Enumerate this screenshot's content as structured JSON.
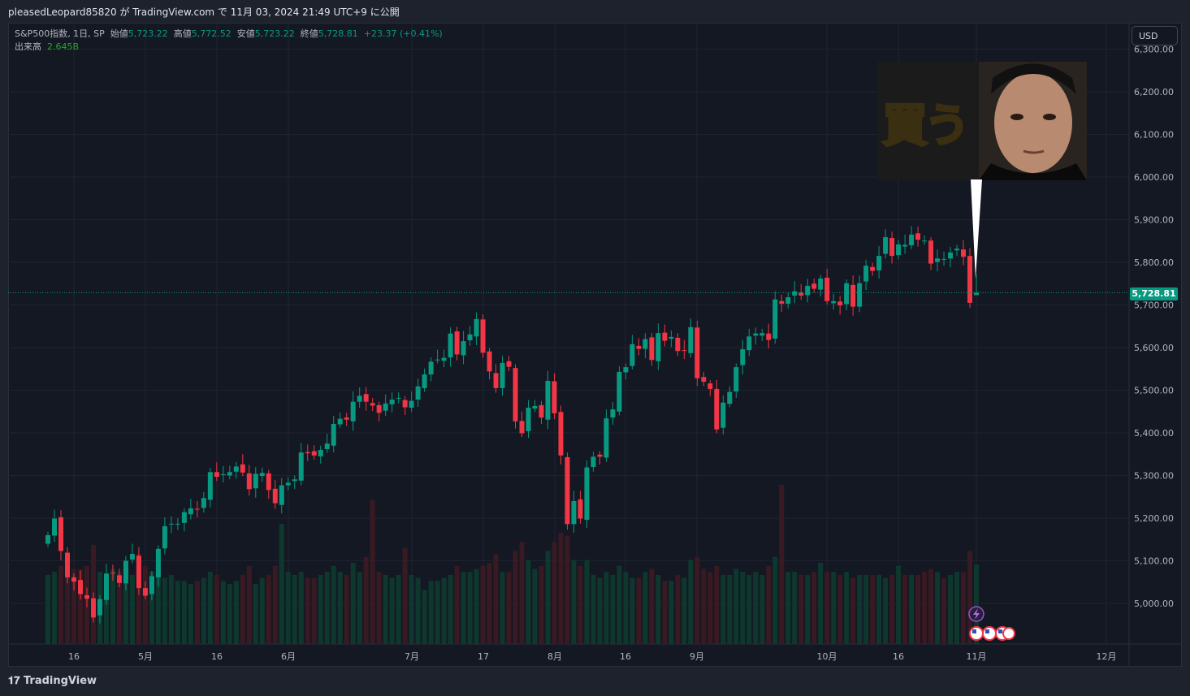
{
  "header": {
    "published": "pleasedLeopard85820 が TradingView.com で 11月 03, 2024 21:49 UTC+9 に公開"
  },
  "legend": {
    "symbol": "S&P500指数, 1日, SP",
    "open_label": "始値",
    "open": "5,723.22",
    "high_label": "高値",
    "high": "5,772.52",
    "low_label": "安値",
    "low": "5,723.22",
    "close_label": "終値",
    "close": "5,728.81",
    "change": "+23.37 (+0.41%)",
    "volume_label": "出来高",
    "volume": "2.645B"
  },
  "currency_button": "USD",
  "last_price_label": "5,728.81",
  "thumbnail": {
    "text": "買う"
  },
  "footer": {
    "brand": "TradingView"
  },
  "colors": {
    "up": "#089981",
    "down": "#f23645",
    "background": "#141823"
  },
  "chart_data": {
    "type": "candlestick",
    "yaxis_ticks": [
      "5,000.00",
      "5,100.00",
      "5,200.00",
      "5,300.00",
      "5,400.00",
      "5,500.00",
      "5,600.00",
      "5,700.00",
      "5,800.00",
      "5,900.00",
      "6,000.00",
      "6,100.00",
      "6,200.00",
      "6,300.00"
    ],
    "ylim": [
      4950,
      6300
    ],
    "xaxis_ticks": [
      "16",
      "5月",
      "16",
      "6月",
      "7月",
      "17",
      "8月",
      "16",
      "9月",
      "10月",
      "16",
      "11月",
      "12月"
    ],
    "grid": true,
    "last_candle": {
      "open": 5723.22,
      "high": 5772.52,
      "low": 5723.22,
      "close": 5728.81
    },
    "dates": [
      "04-10",
      "04-11",
      "04-12",
      "04-15",
      "04-16",
      "04-17",
      "04-18",
      "04-19",
      "04-22",
      "04-23",
      "04-24",
      "04-25",
      "04-26",
      "04-29",
      "04-30",
      "05-01",
      "05-02",
      "05-03",
      "05-06",
      "05-07",
      "05-08",
      "05-09",
      "05-10",
      "05-13",
      "05-14",
      "05-15",
      "05-16",
      "05-17",
      "05-20",
      "05-21",
      "05-22",
      "05-23",
      "05-24",
      "05-28",
      "05-29",
      "05-30",
      "05-31",
      "06-03",
      "06-04",
      "06-05",
      "06-06",
      "06-07",
      "06-10",
      "06-11",
      "06-12",
      "06-13",
      "06-14",
      "06-17",
      "06-18",
      "06-20",
      "06-21",
      "06-24",
      "06-25",
      "06-26",
      "06-27",
      "06-28",
      "07-01",
      "07-02",
      "07-03",
      "07-05",
      "07-08",
      "07-09",
      "07-10",
      "07-11",
      "07-12",
      "07-15",
      "07-16",
      "07-17",
      "07-18",
      "07-19",
      "07-22",
      "07-23",
      "07-24",
      "07-25",
      "07-26",
      "07-29",
      "07-30",
      "07-31",
      "08-01",
      "08-02",
      "08-05",
      "08-06",
      "08-07",
      "08-08",
      "08-09",
      "08-12",
      "08-13",
      "08-14",
      "08-15",
      "08-16",
      "08-19",
      "08-20",
      "08-21",
      "08-22",
      "08-23",
      "08-26",
      "08-27",
      "08-28",
      "08-29",
      "08-30",
      "09-03",
      "09-04",
      "09-05",
      "09-06",
      "09-09",
      "09-10",
      "09-11",
      "09-12",
      "09-13",
      "09-16",
      "09-17",
      "09-18",
      "09-19",
      "09-20",
      "09-23",
      "09-24",
      "09-25",
      "09-26",
      "09-27",
      "09-30",
      "10-01",
      "10-02",
      "10-03",
      "10-04",
      "10-07",
      "10-08",
      "10-09",
      "10-10",
      "10-11",
      "10-14",
      "10-15",
      "10-16",
      "10-17",
      "10-18",
      "10-21",
      "10-22",
      "10-23",
      "10-24",
      "10-25",
      "10-28",
      "10-29",
      "10-30",
      "10-31",
      "11-01"
    ],
    "close": [
      5160,
      5199,
      5123,
      5061,
      5051,
      5022,
      5011,
      4967,
      5010,
      5070,
      5071,
      5048,
      5100,
      5116,
      5036,
      5018,
      5064,
      5128,
      5181,
      5187,
      5187,
      5214,
      5223,
      5221,
      5247,
      5308,
      5297,
      5303,
      5308,
      5321,
      5307,
      5268,
      5304,
      5306,
      5266,
      5235,
      5277,
      5283,
      5291,
      5354,
      5352,
      5347,
      5360,
      5375,
      5421,
      5433,
      5431,
      5473,
      5487,
      5473,
      5464,
      5447,
      5469,
      5478,
      5482,
      5460,
      5475,
      5509,
      5537,
      5567,
      5572,
      5576,
      5633,
      5584,
      5615,
      5631,
      5667,
      5588,
      5544,
      5505,
      5564,
      5555,
      5427,
      5399,
      5459,
      5463,
      5436,
      5522,
      5446,
      5347,
      5186,
      5240,
      5199,
      5319,
      5344,
      5344,
      5434,
      5455,
      5543,
      5554,
      5608,
      5597,
      5620,
      5571,
      5634,
      5616,
      5625,
      5592,
      5592,
      5648,
      5528,
      5520,
      5503,
      5408,
      5471,
      5496,
      5554,
      5596,
      5626,
      5633,
      5634,
      5618,
      5713,
      5703,
      5718,
      5732,
      5722,
      5745,
      5738,
      5762,
      5709,
      5709,
      5699,
      5751,
      5696,
      5751,
      5792,
      5780,
      5815,
      5859,
      5815,
      5842,
      5841,
      5865,
      5853,
      5851,
      5797,
      5809,
      5808,
      5823,
      5832,
      5813,
      5705,
      5728.81
    ],
    "volume_b": [
      2.3,
      2.4,
      2.6,
      2.8,
      2.5,
      2.5,
      2.6,
      3.3,
      2.4,
      2.3,
      2.5,
      2.4,
      2.2,
      2.3,
      3.0,
      2.6,
      2.4,
      2.6,
      2.2,
      2.3,
      2.1,
      2.1,
      2.0,
      2.1,
      2.2,
      2.4,
      2.3,
      2.1,
      2.0,
      2.1,
      2.3,
      2.6,
      2.0,
      2.2,
      2.3,
      2.6,
      4.0,
      2.4,
      2.3,
      2.4,
      2.2,
      2.2,
      2.3,
      2.4,
      2.6,
      2.4,
      2.3,
      2.7,
      2.4,
      2.9,
      4.8,
      2.4,
      2.3,
      2.2,
      2.3,
      3.2,
      2.3,
      2.2,
      1.8,
      2.1,
      2.1,
      2.2,
      2.3,
      2.6,
      2.4,
      2.4,
      2.5,
      2.6,
      2.7,
      3.0,
      2.4,
      2.4,
      3.1,
      3.4,
      2.8,
      2.5,
      2.6,
      3.1,
      3.4,
      3.7,
      3.6,
      2.8,
      2.6,
      2.8,
      2.3,
      2.2,
      2.4,
      2.3,
      2.6,
      2.4,
      2.2,
      2.2,
      2.4,
      2.5,
      2.3,
      2.1,
      2.1,
      2.3,
      2.2,
      2.8,
      2.9,
      2.5,
      2.4,
      2.6,
      2.3,
      2.3,
      2.5,
      2.4,
      2.3,
      2.4,
      2.3,
      2.6,
      2.9,
      5.3,
      2.4,
      2.4,
      2.3,
      2.3,
      2.4,
      2.7,
      2.4,
      2.4,
      2.3,
      2.4,
      2.2,
      2.3,
      2.3,
      2.3,
      2.3,
      2.2,
      2.3,
      2.6,
      2.3,
      2.3,
      2.3,
      2.4,
      2.5,
      2.4,
      2.2,
      2.3,
      2.4,
      2.4,
      3.1,
      2.645
    ]
  }
}
